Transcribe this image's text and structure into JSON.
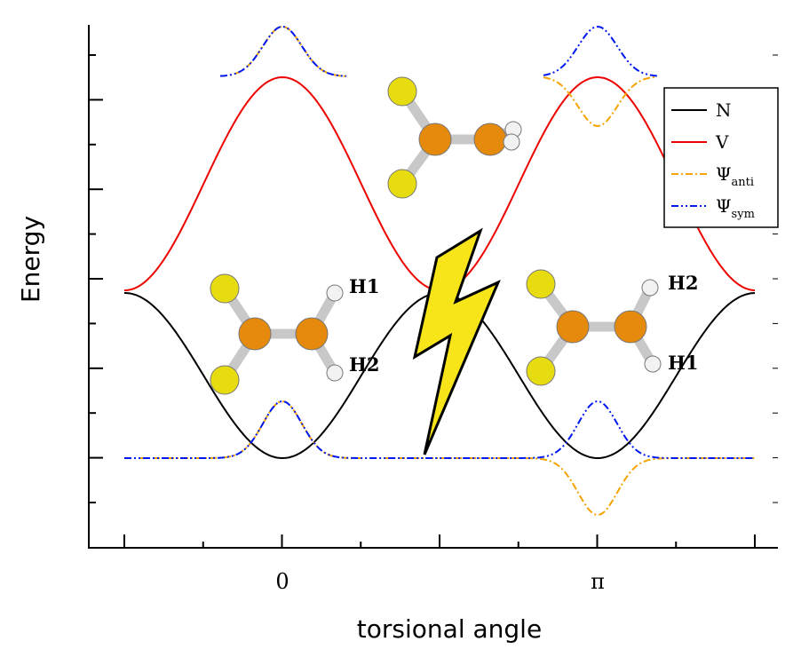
{
  "axes": {
    "x_label": "torsional angle",
    "y_label": "Energy",
    "x_ticks": [
      "0",
      "π"
    ]
  },
  "legend": [
    {
      "symbol": "N"
    },
    {
      "symbol": "V"
    },
    {
      "symbol": "Ψ",
      "subscript": "anti"
    },
    {
      "symbol": "Ψ",
      "subscript": "sym"
    }
  ],
  "molecules": [
    {
      "labels": [
        "H1",
        "H2"
      ]
    },
    {
      "labels": [
        "H2",
        "H1"
      ]
    }
  ]
}
